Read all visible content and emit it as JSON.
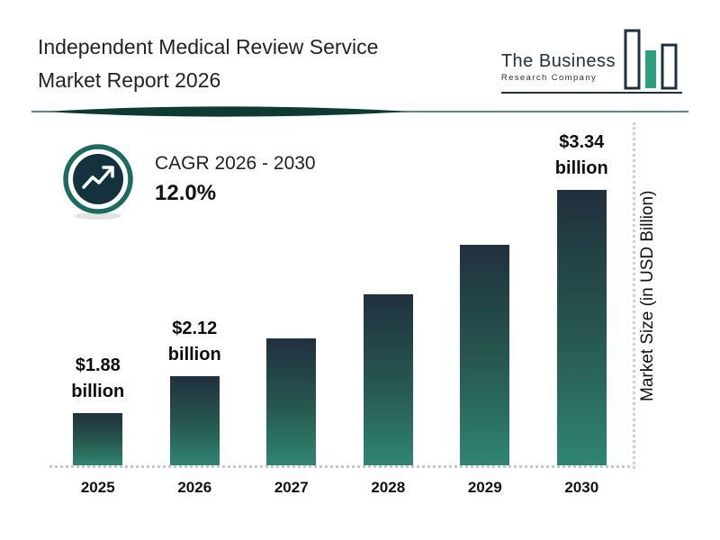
{
  "header": {
    "title_line1": "Independent Medical Review Service",
    "title_line2": "Market Report 2026",
    "logo": {
      "line1": "The Business",
      "line2": "Research Company"
    }
  },
  "cagr": {
    "label": "CAGR 2026 - 2030",
    "value": "12.0%"
  },
  "chart_data": {
    "type": "bar",
    "title": "Independent Medical Review Service Market Report 2026",
    "categories": [
      "2025",
      "2026",
      "2027",
      "2028",
      "2029",
      "2030"
    ],
    "values": [
      1.88,
      2.12,
      2.37,
      2.66,
      2.98,
      3.34
    ],
    "value_labels": [
      "$1.88 billion",
      "$2.12 billion",
      null,
      null,
      null,
      "$3.34 billion"
    ],
    "xlabel": "",
    "ylabel": "Market Size (in USD Billion)",
    "ylim": [
      0,
      3.6
    ],
    "grid": false,
    "legend": false,
    "colors": {
      "bar_gradient_top": "#20303e",
      "bar_gradient_bottom": "#2f8573",
      "accent_teal": "#1c6b5f",
      "logo_navy": "#1c3040",
      "logo_green": "#2aa07e",
      "text_dark": "#111111"
    }
  }
}
